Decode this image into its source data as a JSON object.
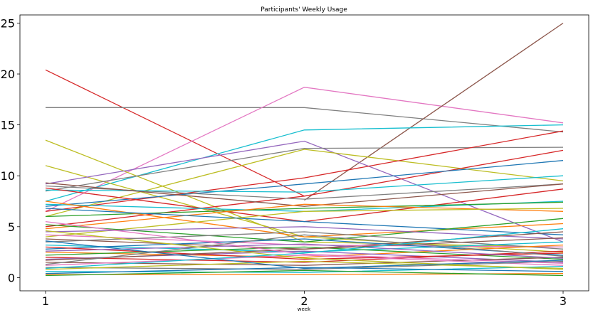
{
  "chart_data": {
    "type": "line",
    "title": "Participants' Weekly Usage",
    "xlabel": "week",
    "ylabel": "",
    "x": [
      1,
      2,
      3
    ],
    "x_ticks": [
      "1",
      "2",
      "3"
    ],
    "ylim": [
      -1.3,
      25.8
    ],
    "y_ticks": [
      "0",
      "5",
      "10",
      "15",
      "20",
      "25"
    ],
    "grid": false,
    "legend": "none",
    "palette": [
      "#1f77b4",
      "#ff7f0e",
      "#2ca02c",
      "#d62728",
      "#9467bd",
      "#8c564b",
      "#e377c2",
      "#7f7f7f",
      "#bcbd22",
      "#17becf"
    ],
    "series": [
      {
        "values": [
          20.4,
          8.0,
          null
        ],
        "color": "#d62728"
      },
      {
        "values": [
          16.7,
          16.7,
          14.3
        ],
        "color": "#7f7f7f"
      },
      {
        "values": [
          6.5,
          18.7,
          15.2
        ],
        "color": "#e377c2"
      },
      {
        "values": [
          null,
          7.6,
          25.0
        ],
        "color": "#8c564b"
      },
      {
        "values": [
          7.5,
          14.5,
          15.0
        ],
        "color": "#17becf"
      },
      {
        "values": [
          13.5,
          3.5,
          3.0
        ],
        "color": "#bcbd22"
      },
      {
        "values": [
          11.0,
          4.0,
          2.5
        ],
        "color": "#bcbd22"
      },
      {
        "values": [
          9.2,
          13.4,
          3.5
        ],
        "color": "#9467bd"
      },
      {
        "values": [
          8.5,
          12.7,
          12.8
        ],
        "color": "#7f7f7f"
      },
      {
        "values": [
          6.0,
          12.6,
          9.5
        ],
        "color": "#bcbd22"
      },
      {
        "values": [
          6.5,
          9.8,
          14.4
        ],
        "color": "#d62728"
      },
      {
        "values": [
          5.0,
          8.0,
          12.5
        ],
        "color": "#d62728"
      },
      {
        "values": [
          7.0,
          9.2,
          11.5
        ],
        "color": "#1f77b4"
      },
      {
        "values": [
          9.0,
          7.7,
          9.2
        ],
        "color": "#7f7f7f"
      },
      {
        "values": [
          8.6,
          8.4,
          10.0
        ],
        "color": "#17becf"
      },
      {
        "values": [
          9.3,
          7.0,
          9.2
        ],
        "color": "#8c564b"
      },
      {
        "values": [
          8.8,
          5.5,
          8.7
        ],
        "color": "#d62728"
      },
      {
        "values": [
          7.2,
          6.5,
          7.5
        ],
        "color": "#17becf"
      },
      {
        "values": [
          6.0,
          6.8,
          7.4
        ],
        "color": "#2ca02c"
      },
      {
        "values": [
          7.5,
          4.0,
          5.3
        ],
        "color": "#ff7f0e"
      },
      {
        "values": [
          4.8,
          7.2,
          6.5
        ],
        "color": "#ff7f0e"
      },
      {
        "values": [
          4.0,
          6.5,
          6.8
        ],
        "color": "#bcbd22"
      },
      {
        "values": [
          6.8,
          5.5,
          4.2
        ],
        "color": "#1f77b4"
      },
      {
        "values": [
          5.2,
          3.5,
          5.8
        ],
        "color": "#2ca02c"
      },
      {
        "values": [
          4.5,
          5.0,
          3.8
        ],
        "color": "#9467bd"
      },
      {
        "values": [
          3.8,
          2.8,
          4.5
        ],
        "color": "#8c564b"
      },
      {
        "values": [
          4.2,
          3.2,
          3.0
        ],
        "color": "#e377c2"
      },
      {
        "values": [
          3.5,
          4.5,
          2.8
        ],
        "color": "#7f7f7f"
      },
      {
        "values": [
          3.2,
          2.5,
          3.5
        ],
        "color": "#17becf"
      },
      {
        "values": [
          2.8,
          3.8,
          2.2
        ],
        "color": "#1f77b4"
      },
      {
        "values": [
          2.5,
          2.0,
          3.2
        ],
        "color": "#ff7f0e"
      },
      {
        "values": [
          2.2,
          3.0,
          1.8
        ],
        "color": "#2ca02c"
      },
      {
        "values": [
          2.0,
          1.5,
          2.6
        ],
        "color": "#d62728"
      },
      {
        "values": [
          1.8,
          2.6,
          1.5
        ],
        "color": "#9467bd"
      },
      {
        "values": [
          1.5,
          1.2,
          2.0
        ],
        "color": "#8c564b"
      },
      {
        "values": [
          1.2,
          2.2,
          1.2
        ],
        "color": "#e377c2"
      },
      {
        "values": [
          1.0,
          0.8,
          1.6
        ],
        "color": "#7f7f7f"
      },
      {
        "values": [
          0.8,
          1.6,
          0.9
        ],
        "color": "#bcbd22"
      },
      {
        "values": [
          0.6,
          0.5,
          1.1
        ],
        "color": "#17becf"
      },
      {
        "values": [
          0.4,
          1.0,
          0.6
        ],
        "color": "#1f77b4"
      },
      {
        "values": [
          0.3,
          0.3,
          0.4
        ],
        "color": "#ff7f0e"
      },
      {
        "values": [
          0.2,
          0.7,
          0.2
        ],
        "color": "#2ca02c"
      },
      {
        "values": [
          3.0,
          1.8,
          2.4
        ],
        "color": "#d62728"
      },
      {
        "values": [
          2.6,
          3.3,
          1.9
        ],
        "color": "#9467bd"
      },
      {
        "values": [
          1.7,
          2.8,
          3.9
        ],
        "color": "#8c564b"
      },
      {
        "values": [
          5.5,
          2.3,
          1.4
        ],
        "color": "#e377c2"
      },
      {
        "values": [
          1.3,
          4.2,
          2.1
        ],
        "color": "#7f7f7f"
      },
      {
        "values": [
          4.6,
          1.9,
          0.8
        ],
        "color": "#bcbd22"
      },
      {
        "values": [
          0.9,
          2.4,
          4.8
        ],
        "color": "#17becf"
      },
      {
        "values": [
          3.6,
          0.9,
          1.7
        ],
        "color": "#1f77b4"
      }
    ]
  }
}
